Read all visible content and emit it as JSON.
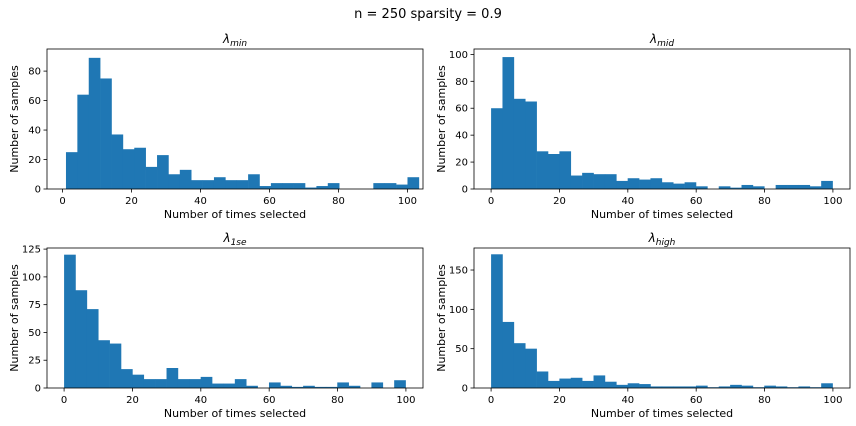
{
  "suptitle": "n = 250 sparsity = 0.9",
  "chart_data": [
    {
      "type": "bar",
      "title_symbol": "λ",
      "title_sub": "min",
      "xlabel": "Number of times selected",
      "ylabel": "Number of samples",
      "bin_width": 3.3,
      "x_start": 1,
      "values": [
        25,
        64,
        89,
        75,
        37,
        27,
        28,
        15,
        23,
        10,
        13,
        6,
        6,
        8,
        6,
        6,
        10,
        2,
        4,
        4,
        4,
        1,
        2,
        4,
        0,
        0,
        0,
        4,
        4,
        3,
        8
      ],
      "xlim": [
        -4.5,
        104.5
      ],
      "ylim": [
        0,
        95
      ],
      "xticks": [
        0,
        20,
        40,
        60,
        80,
        100
      ],
      "yticks": [
        0,
        20,
        40,
        60,
        80
      ]
    },
    {
      "type": "bar",
      "title_symbol": "λ",
      "title_sub": "mid",
      "xlabel": "Number of times selected",
      "ylabel": "Number of samples",
      "bin_width": 3.33,
      "x_start": 0,
      "values": [
        60,
        98,
        67,
        65,
        28,
        26,
        28,
        10,
        12,
        11,
        11,
        6,
        8,
        7,
        8,
        5,
        4,
        5,
        2,
        0,
        2,
        1,
        3,
        2,
        0,
        3,
        3,
        3,
        2,
        6
      ],
      "xlim": [
        -5,
        105
      ],
      "ylim": [
        0,
        104
      ],
      "xticks": [
        0,
        20,
        40,
        60,
        80,
        100
      ],
      "yticks": [
        0,
        20,
        40,
        60,
        80,
        100
      ]
    },
    {
      "type": "bar",
      "title_symbol": "λ",
      "title_sub": "1se",
      "xlabel": "Number of times selected",
      "ylabel": "Number of samples",
      "bin_width": 3.33,
      "x_start": 0,
      "values": [
        120,
        88,
        71,
        43,
        40,
        17,
        12,
        8,
        8,
        18,
        8,
        8,
        10,
        4,
        4,
        8,
        2,
        0,
        5,
        2,
        1,
        2,
        1,
        1,
        5,
        2,
        0,
        5,
        0,
        7
      ],
      "xlim": [
        -5,
        105
      ],
      "ylim": [
        0,
        126
      ],
      "xticks": [
        0,
        20,
        40,
        60,
        80,
        100
      ],
      "yticks": [
        0,
        25,
        50,
        75,
        100,
        125
      ]
    },
    {
      "type": "bar",
      "title_symbol": "λ",
      "title_sub": "high",
      "xlabel": "Number of times selected",
      "ylabel": "Number of samples",
      "bin_width": 3.33,
      "x_start": 0,
      "values": [
        170,
        84,
        57,
        50,
        21,
        9,
        12,
        13,
        9,
        16,
        8,
        4,
        6,
        5,
        2,
        2,
        2,
        2,
        3,
        1,
        2,
        4,
        3,
        1,
        3,
        2,
        1,
        2,
        1,
        6
      ],
      "xlim": [
        -5,
        105
      ],
      "ylim": [
        0,
        178
      ],
      "xticks": [
        0,
        20,
        40,
        60,
        80,
        100
      ],
      "yticks": [
        0,
        50,
        100,
        150
      ]
    }
  ]
}
